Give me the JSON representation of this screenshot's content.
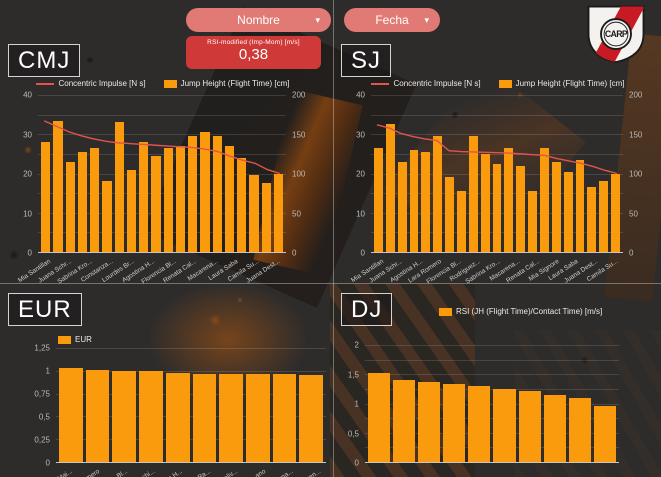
{
  "filters": [
    {
      "label": "Nombre"
    },
    {
      "label": "Fecha"
    }
  ],
  "icons": {
    "chevron": "▾"
  },
  "kpi": {
    "label": "RSI-modified (Imp-Mom) [m/s]",
    "value": "0,38"
  },
  "crest": {
    "monogram": "CARP"
  },
  "colors": {
    "bar": "#f99b0c",
    "line": "#e2544b",
    "pill": "#e17a74",
    "kpi_card": "#cf3a38",
    "axis_text": "#bdbab6",
    "grid": "rgba(255,255,255,0.13)"
  },
  "chart_data": [
    {
      "id": "cmj",
      "title": "CMJ",
      "type": "bar",
      "combo": true,
      "minor_gridlines": true,
      "legend": [
        {
          "swatch": "line",
          "label": "Concentric Impulse [N s]"
        },
        {
          "swatch": "bar",
          "label": "Jump Height (Flight Time) [cm]"
        }
      ],
      "y_left": {
        "ticks": [
          "40",
          "30",
          "20",
          "10",
          "0"
        ],
        "max": 40
      },
      "y_right": {
        "ticks": [
          "200",
          "150",
          "100",
          "50",
          "0"
        ],
        "max": 200
      },
      "x_labels": [
        "Mia Santillan",
        "Juana Schr...",
        "Sabrina Kro...",
        "Constanza...",
        "Lourdes Br...",
        "Agostina H...",
        "Florencia Bl...",
        "Renata Cal...",
        "Macarena...",
        "Laura Saba",
        "Camila Su...",
        "Juana Dest..."
      ],
      "bars": [
        28,
        33.5,
        23,
        25.5,
        26.5,
        18,
        33,
        21,
        28,
        24.5,
        26.5,
        27,
        29.5,
        30.5,
        29.5,
        27,
        24,
        19.5,
        17.5,
        20
      ],
      "line": [
        167,
        160,
        153,
        148,
        144,
        141,
        139,
        138,
        137,
        136,
        135,
        134,
        133,
        131,
        128,
        122,
        117,
        113,
        105,
        100
      ]
    },
    {
      "id": "sj",
      "title": "SJ",
      "type": "bar",
      "combo": true,
      "minor_gridlines": true,
      "legend": [
        {
          "swatch": "line",
          "label": "Concentric Impulse [N s]"
        },
        {
          "swatch": "bar",
          "label": "Jump Height (Flight Time) [cm]"
        }
      ],
      "y_left": {
        "ticks": [
          "40",
          "30",
          "20",
          "10",
          "0"
        ],
        "max": 40
      },
      "y_right": {
        "ticks": [
          "200",
          "150",
          "100",
          "50",
          "0"
        ],
        "max": 200
      },
      "x_labels": [
        "Mia Santillan",
        "Juana Schr...",
        "Agostina H...",
        "Lara Romero",
        "Florencia Bl...",
        "Rodriguez...",
        "Sabrina Kro...",
        "Macarena...",
        "Renata Cal...",
        "Mia Signore",
        "Laura Saba",
        "Juana Dest...",
        "Camila Su..."
      ],
      "bars": [
        26.5,
        32.5,
        23,
        26,
        25.5,
        29.5,
        19,
        15.5,
        29.5,
        25,
        22.5,
        26.5,
        22,
        15.5,
        26.5,
        23,
        20.5,
        23.5,
        16.5,
        18,
        20
      ],
      "line": [
        162,
        158,
        151,
        147,
        144,
        142,
        129,
        128,
        127.5,
        127,
        126.5,
        126,
        125,
        124,
        123,
        119,
        116,
        113,
        109,
        104,
        100
      ]
    },
    {
      "id": "eur",
      "title": "EUR",
      "type": "bar",
      "combo": false,
      "minor_gridlines": false,
      "legend": [
        {
          "swatch": "bar",
          "label": "EUR"
        }
      ],
      "y_left": {
        "ticks": [
          "1,25",
          "1",
          "0,75",
          "0,5",
          "0,25",
          "0"
        ],
        "max": 1.25
      },
      "x_labels": [
        "Mai...",
        "...mero",
        "...a Bl...",
        "...schi...",
        "...a H...",
        "...Ra...",
        "...oliv...",
        "...ano",
        "...ana...",
        "...sen..."
      ],
      "bars": [
        1.03,
        1.01,
        1.0,
        1.0,
        0.98,
        0.97,
        0.97,
        0.96,
        0.96,
        0.95
      ]
    },
    {
      "id": "dj",
      "title": "DJ",
      "type": "bar",
      "combo": false,
      "minor_gridlines": true,
      "legend": [
        {
          "swatch": "bar",
          "label": "RSI (JH (Flight Time)/Contact Time) [m/s]"
        }
      ],
      "y_left": {
        "ticks": [
          "2",
          "1,5",
          "1",
          "0,5",
          "0"
        ],
        "max": 2
      },
      "x_labels": [],
      "bars": [
        1.52,
        1.41,
        1.37,
        1.34,
        1.3,
        1.24,
        1.21,
        1.14,
        1.1,
        0.95
      ]
    }
  ]
}
